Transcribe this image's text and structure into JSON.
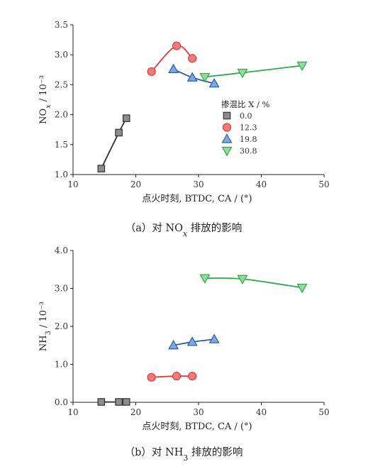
{
  "chart_data": [
    {
      "type": "scatter",
      "caption": "（a）对 NOx 排放的影响",
      "xlabel": "点火时刻, BTDC, CA / (°)",
      "ylabel": "NOx / 10⁻³",
      "xlim": [
        10,
        50
      ],
      "ylim": [
        1.0,
        3.5
      ],
      "xticks": [
        "10",
        "20",
        "30",
        "40",
        "50"
      ],
      "yticks": [
        "1.0",
        "1.5",
        "2.0",
        "2.5",
        "3.0",
        "3.5"
      ],
      "legend": {
        "title": "掺混比 X / %",
        "placement": "center-right"
      },
      "series": [
        {
          "name": "0.0",
          "marker": "square",
          "color": "#8c8c8c",
          "line": "#333333",
          "x": [
            14.5,
            17.3,
            18.5
          ],
          "y": [
            1.1,
            1.7,
            1.94
          ]
        },
        {
          "name": "12.3",
          "marker": "circle",
          "color": "#f07a7a",
          "line": "#e03c3c",
          "x": [
            22.5,
            26.5,
            29.0
          ],
          "y": [
            2.72,
            3.15,
            2.94
          ]
        },
        {
          "name": "19.8",
          "marker": "triangle-up",
          "color": "#7ea6e0",
          "line": "#2a5fa8",
          "x": [
            26.0,
            29.0,
            32.5
          ],
          "y": [
            2.76,
            2.62,
            2.52
          ]
        },
        {
          "name": "30.8",
          "marker": "triangle-down",
          "color": "#8fdc9b",
          "line": "#2ea84a",
          "x": [
            31.0,
            37.0,
            46.5
          ],
          "y": [
            2.63,
            2.7,
            2.82
          ]
        }
      ]
    },
    {
      "type": "scatter",
      "caption": "（b）对 NH3 排放的影响",
      "xlabel": "点火时刻, BTDC, CA / (°)",
      "ylabel": "NH3 / 10⁻³",
      "xlim": [
        10,
        50
      ],
      "ylim": [
        0.0,
        4.0
      ],
      "xticks": [
        "10",
        "20",
        "30",
        "40",
        "50"
      ],
      "yticks": [
        "0.0",
        "1.0",
        "2.0",
        "3.0",
        "4.0"
      ],
      "series": [
        {
          "name": "0.0",
          "marker": "square",
          "color": "#8c8c8c",
          "line": "#333333",
          "x": [
            14.5,
            17.3,
            18.5
          ],
          "y": [
            0.01,
            0.01,
            0.01
          ]
        },
        {
          "name": "12.3",
          "marker": "circle",
          "color": "#f07a7a",
          "line": "#e03c3c",
          "x": [
            22.5,
            26.5,
            29.0
          ],
          "y": [
            0.66,
            0.69,
            0.69
          ]
        },
        {
          "name": "19.8",
          "marker": "triangle-up",
          "color": "#7ea6e0",
          "line": "#2a5fa8",
          "x": [
            26.0,
            29.0,
            32.5
          ],
          "y": [
            1.5,
            1.59,
            1.66
          ]
        },
        {
          "name": "30.8",
          "marker": "triangle-down",
          "color": "#8fdc9b",
          "line": "#2ea84a",
          "x": [
            31.0,
            37.0,
            46.5
          ],
          "y": [
            3.27,
            3.25,
            3.02
          ]
        }
      ]
    }
  ]
}
